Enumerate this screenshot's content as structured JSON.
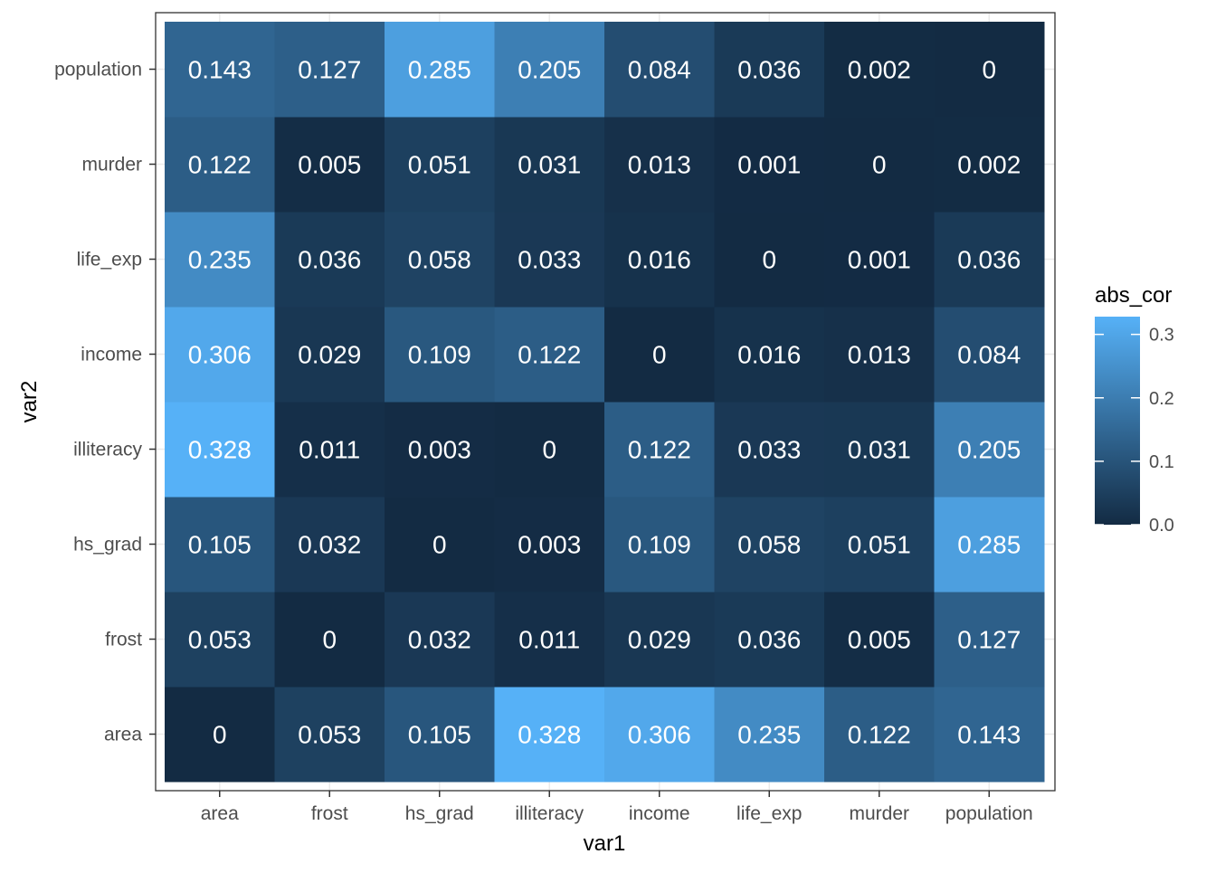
{
  "chart_data": {
    "type": "heatmap",
    "title": "",
    "xlabel": "var1",
    "ylabel": "var2",
    "x_categories": [
      "area",
      "frost",
      "hs_grad",
      "illiteracy",
      "income",
      "life_exp",
      "murder",
      "population"
    ],
    "y_categories": [
      "area",
      "frost",
      "hs_grad",
      "illiteracy",
      "income",
      "life_exp",
      "murder",
      "population"
    ],
    "values": [
      [
        0,
        0.053,
        0.105,
        0.328,
        0.306,
        0.235,
        0.122,
        0.143
      ],
      [
        0.053,
        0,
        0.032,
        0.011,
        0.029,
        0.036,
        0.005,
        0.127
      ],
      [
        0.105,
        0.032,
        0,
        0.003,
        0.109,
        0.058,
        0.051,
        0.285
      ],
      [
        0.328,
        0.011,
        0.003,
        0,
        0.122,
        0.033,
        0.031,
        0.205
      ],
      [
        0.306,
        0.029,
        0.109,
        0.122,
        0,
        0.016,
        0.013,
        0.084
      ],
      [
        0.235,
        0.036,
        0.058,
        0.033,
        0.016,
        0,
        0.001,
        0.036
      ],
      [
        0.122,
        0.005,
        0.051,
        0.031,
        0.013,
        0.001,
        0,
        0.002
      ],
      [
        0.143,
        0.127,
        0.285,
        0.205,
        0.084,
        0.036,
        0.002,
        0
      ]
    ],
    "value_range": [
      0,
      0.328
    ],
    "legend": {
      "title": "abs_cor",
      "ticks": [
        0.0,
        0.1,
        0.2,
        0.3
      ],
      "tick_labels": [
        "0.0",
        "0.1",
        "0.2",
        "0.3"
      ],
      "placement": "right"
    },
    "colors": {
      "low": "#132B43",
      "high": "#56B1F7",
      "cell_text": "#ffffff"
    },
    "grid": true
  }
}
